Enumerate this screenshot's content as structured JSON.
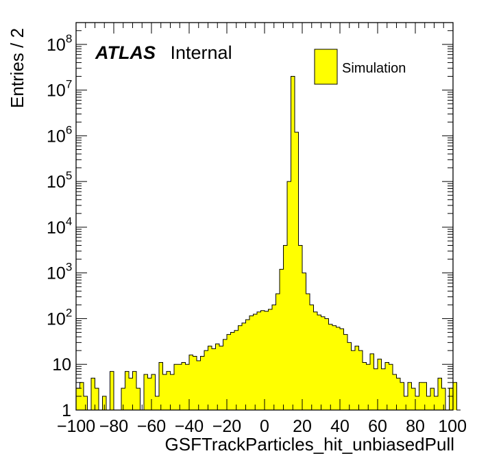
{
  "chart_data": {
    "type": "bar",
    "histtype": "step-filled",
    "xlabel": "GSFTrackParticles_hit_unbiasedPull",
    "ylabel": "Entries / 2",
    "xlim": [
      -100,
      100
    ],
    "ylim": [
      1,
      300000000
    ],
    "yscale": "log",
    "bin_width": 2,
    "fill_color": "#ffff00",
    "edge_color": "#000000",
    "legend_placement": "top-right",
    "legend": [
      "Simulation"
    ],
    "label_bold": "ATLAS",
    "label_normal": "Internal",
    "x_ticks": [
      -100,
      -80,
      -60,
      -40,
      -20,
      0,
      20,
      40,
      60,
      80,
      100
    ],
    "x_tick_labels": [
      "−100",
      "−80",
      "−60",
      "−40",
      "−20",
      "0",
      "20",
      "40",
      "60",
      "80",
      "100"
    ],
    "y_ticks": [
      1,
      10,
      100,
      1000,
      10000,
      100000,
      1000000,
      10000000,
      100000000
    ],
    "y_tick_labels": [
      {
        "base": "1",
        "exp": ""
      },
      {
        "base": "10",
        "exp": ""
      },
      {
        "base": "10",
        "exp": "2"
      },
      {
        "base": "10",
        "exp": "3"
      },
      {
        "base": "10",
        "exp": "4"
      },
      {
        "base": "10",
        "exp": "5"
      },
      {
        "base": "10",
        "exp": "6"
      },
      {
        "base": "10",
        "exp": "7"
      },
      {
        "base": "10",
        "exp": "8"
      }
    ],
    "bin_edges_start": -100,
    "values": [
      3,
      4,
      2,
      1,
      5,
      3,
      1,
      2,
      1,
      7,
      1,
      0,
      3,
      7,
      5,
      7,
      3,
      1,
      6,
      5,
      6,
      2,
      11,
      6,
      7,
      6,
      10,
      10,
      11,
      10,
      16,
      15,
      12,
      15,
      20,
      25,
      22,
      28,
      25,
      35,
      45,
      50,
      55,
      70,
      80,
      95,
      115,
      125,
      140,
      150,
      145,
      160,
      200,
      350,
      1200,
      4000,
      100000,
      20000000,
      1200000,
      4000,
      1000,
      350,
      200,
      140,
      120,
      110,
      100,
      75,
      70,
      65,
      60,
      45,
      30,
      20,
      25,
      20,
      11,
      10,
      17,
      8,
      13,
      8,
      11,
      10,
      6,
      5,
      4,
      2,
      4,
      3,
      2,
      4,
      4,
      2,
      3,
      2,
      5,
      3,
      1,
      3,
      4,
      1
    ]
  }
}
